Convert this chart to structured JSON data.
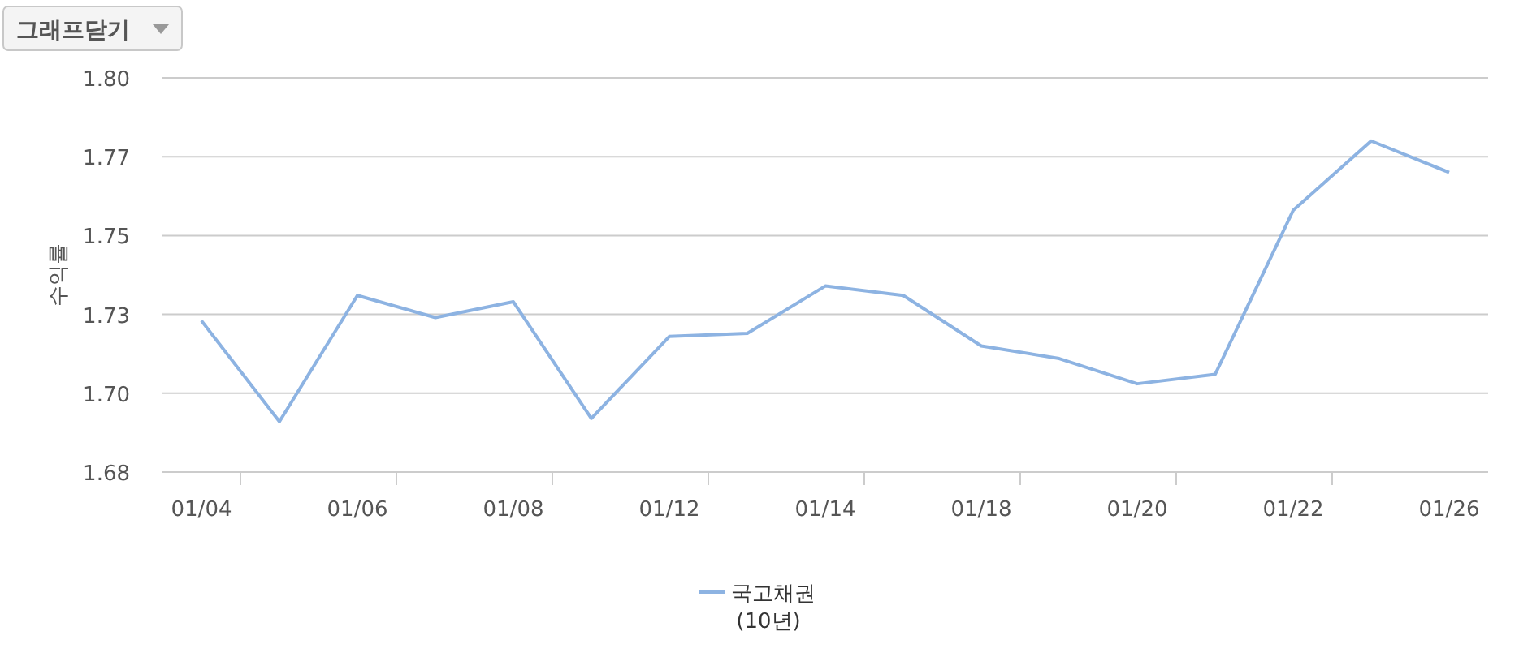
{
  "chart_data": {
    "type": "line",
    "ylabel": "수익률",
    "annotations": [
      "그래프닫기"
    ],
    "categories": [
      "01/04",
      null,
      "01/06",
      null,
      "01/08",
      null,
      "01/12",
      null,
      "01/14",
      null,
      "01/18",
      null,
      "01/20",
      null,
      "01/22",
      null,
      "01/26"
    ],
    "series": [
      {
        "name": "국고채권 (10년)",
        "color": "#8db3e2",
        "values": [
          1.723,
          1.691,
          1.731,
          1.724,
          1.729,
          1.692,
          1.718,
          1.719,
          1.734,
          1.731,
          1.715,
          1.711,
          1.703,
          1.706,
          1.758,
          1.78,
          1.77
        ]
      }
    ],
    "ylim": [
      1.675,
      1.8
    ],
    "yticks": [
      {
        "value": 1.675,
        "label": "1.68"
      },
      {
        "value": 1.7,
        "label": "1.70"
      },
      {
        "value": 1.725,
        "label": "1.73"
      },
      1.75,
      {
        "value": 1.775,
        "label": "1.77"
      },
      {
        "value": 1.8,
        "label": "1.80"
      }
    ],
    "grid": "y",
    "legend": "bottom",
    "marker": "none",
    "line_style": "solid"
  }
}
